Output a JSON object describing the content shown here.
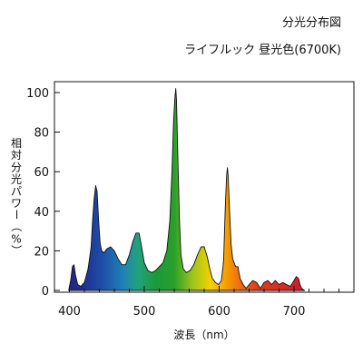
{
  "header": {
    "title": "分光分布図",
    "subtitle": "ライフルック 昼光色(6700K)"
  },
  "chart_data": {
    "type": "area",
    "title": "分光分布図",
    "subtitle": "ライフルック 昼光色(6700K)",
    "xlabel": "波長（nm）",
    "ylabel": "相対分光パワー（%）",
    "xlim": [
      380,
      780
    ],
    "ylim": [
      0,
      100
    ],
    "x_ticks": [
      "400",
      "500",
      "600",
      "700"
    ],
    "y_ticks": [
      "0",
      "20",
      "40",
      "60",
      "80",
      "100"
    ],
    "x_tick_values": [
      400,
      500,
      600,
      700
    ],
    "y_tick_values": [
      0,
      20,
      40,
      60,
      80,
      100
    ],
    "grid": false,
    "fill": "spectral gradient (wavelength colors)",
    "series": [
      {
        "x": [
          399,
          402,
          404,
          406,
          408,
          411,
          415,
          420,
          425,
          429,
          431,
          433,
          435,
          437,
          439,
          441,
          443,
          446,
          450,
          455,
          460,
          465,
          470,
          475,
          480,
          485,
          489,
          493,
          496,
          500,
          505,
          510,
          515,
          520,
          525,
          530,
          534,
          537,
          539,
          541,
          542,
          543,
          545,
          547,
          549,
          552,
          556,
          561,
          566,
          571,
          576,
          580,
          584,
          588,
          591,
          595,
          599,
          603,
          606,
          608,
          610,
          611,
          612,
          614,
          616,
          618,
          620,
          622,
          625,
          628,
          632,
          636,
          640,
          645,
          650,
          655,
          660,
          665,
          670,
          675,
          680,
          685,
          690,
          695,
          700,
          703,
          706,
          708,
          710,
          714
        ],
        "values": [
          0,
          6,
          12,
          13,
          8,
          3,
          2,
          4,
          11,
          22,
          36,
          46,
          53,
          50,
          35,
          24,
          20,
          19,
          21,
          22,
          20,
          16,
          13,
          13,
          18,
          25,
          29,
          29,
          23,
          14,
          10,
          9,
          10,
          12,
          14,
          20,
          35,
          60,
          85,
          98,
          102,
          96,
          65,
          35,
          18,
          11,
          9,
          10,
          13,
          18,
          22,
          22,
          17,
          10,
          6,
          4,
          3,
          5,
          15,
          40,
          58,
          62,
          58,
          40,
          23,
          16,
          14,
          12,
          12,
          6,
          3,
          1,
          3,
          5,
          4,
          1,
          4,
          5,
          3,
          5,
          3,
          4,
          3,
          2,
          5,
          7,
          6,
          3,
          1,
          0
        ]
      }
    ]
  }
}
